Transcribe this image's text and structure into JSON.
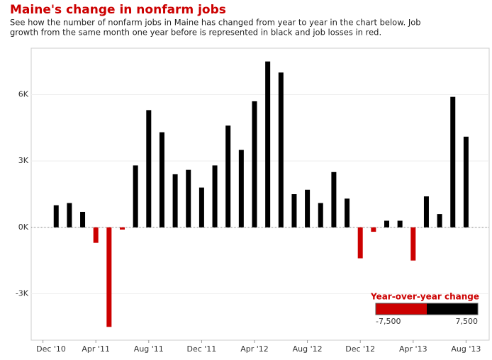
{
  "chart_data": {
    "type": "bar",
    "title": "Maine's change in nonfarm jobs",
    "subtitle": [
      "See how the number of nonfarm jobs in Maine has changed from year to year in the chart below. Job",
      "growth from the same month one year before is represented in black and job losses in red."
    ],
    "categories": [
      "Dec '10",
      null,
      null,
      null,
      "Apr '11",
      null,
      null,
      null,
      "Aug '11",
      null,
      null,
      null,
      "Dec '11",
      null,
      null,
      null,
      "Apr '12",
      null,
      null,
      null,
      "Aug '12",
      null,
      null,
      null,
      "Dec '12",
      null,
      null,
      null,
      "Apr '13",
      null,
      null,
      null,
      "Aug '13"
    ],
    "values": [
      null,
      1.0,
      1.1,
      0.7,
      -0.7,
      -4.5,
      -0.1,
      2.8,
      5.3,
      4.3,
      2.4,
      2.6,
      1.8,
      2.8,
      4.6,
      3.5,
      5.7,
      7.5,
      7.0,
      1.5,
      1.7,
      1.1,
      2.5,
      1.3,
      -1.4,
      -0.2,
      0.3,
      0.3,
      -1.5,
      1.4,
      0.6,
      5.9,
      4.1
    ],
    "positive_color": "#000000",
    "negative_color": "#cc0000",
    "ylim": [
      -5.1,
      8.1
    ],
    "yticks": [
      {
        "value": -3,
        "label": "-3K"
      },
      {
        "value": 0,
        "label": "0K"
      },
      {
        "value": 3,
        "label": "3K"
      },
      {
        "value": 6,
        "label": "6K"
      }
    ],
    "grid": true,
    "legend": {
      "title": "Year-over-year change",
      "min": {
        "value": -7500,
        "label": "-7,500"
      },
      "max": {
        "value": 7500,
        "label": "7,500"
      }
    }
  }
}
